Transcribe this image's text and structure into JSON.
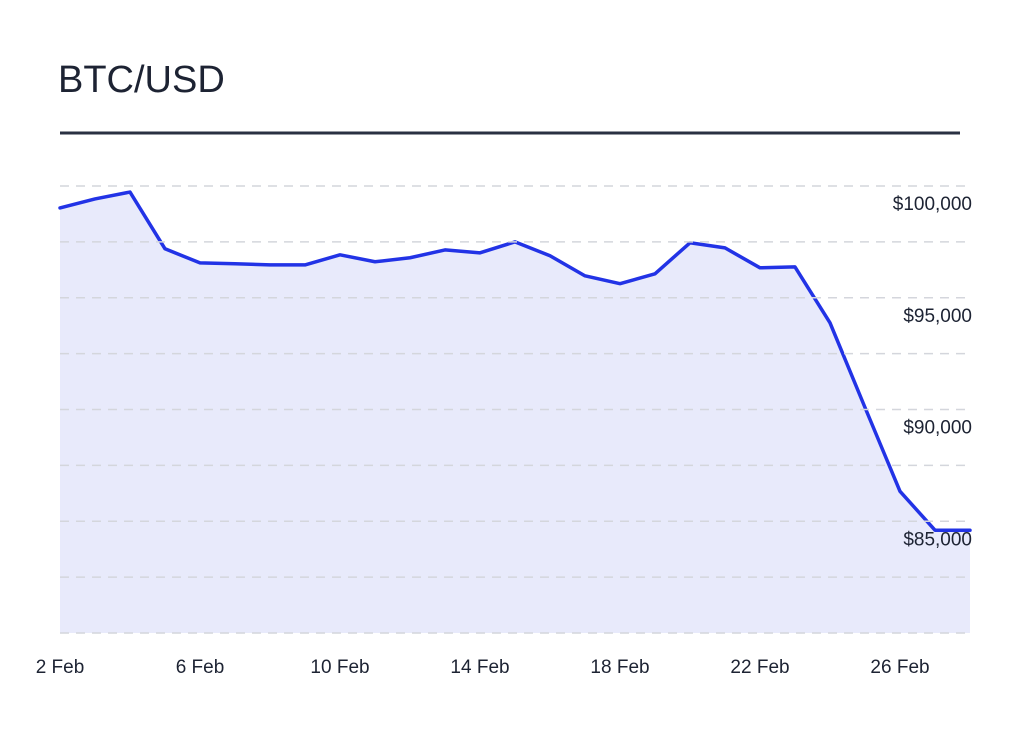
{
  "chart_data": {
    "type": "area",
    "title": "BTC/USD",
    "categories": [
      "2 Feb",
      null,
      null,
      null,
      "6 Feb",
      null,
      null,
      null,
      "10 Feb",
      null,
      null,
      null,
      "14 Feb",
      null,
      null,
      null,
      "18 Feb",
      null,
      null,
      null,
      "22 Feb",
      null,
      null,
      null,
      "26 Feb",
      null,
      null
    ],
    "values": [
      99020,
      99420,
      99730,
      97190,
      96560,
      96520,
      96470,
      96470,
      96920,
      96610,
      96790,
      97140,
      97010,
      97500,
      96880,
      95980,
      95630,
      96070,
      97460,
      97230,
      96340,
      96380,
      93880,
      90090,
      86340,
      84600,
      84600
    ],
    "color": "#2233e6",
    "fill_color": "#e8eafb",
    "ylim": [
      80000,
      100000
    ],
    "yticks": [
      {
        "value": 80000,
        "label": null
      },
      {
        "value": 82500,
        "label": null
      },
      {
        "value": 85000,
        "label": "$85,000"
      },
      {
        "value": 87500,
        "label": null
      },
      {
        "value": 90000,
        "label": "$90,000"
      },
      {
        "value": 92500,
        "label": null
      },
      {
        "value": 95000,
        "label": "$95,000"
      },
      {
        "value": 97500,
        "label": null
      },
      {
        "value": 100000,
        "label": "$100,000"
      }
    ],
    "grid": true
  }
}
